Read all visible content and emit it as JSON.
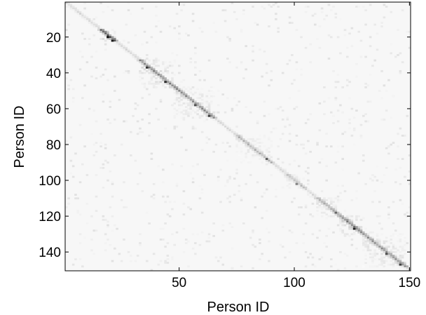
{
  "chart_data": {
    "type": "heatmap",
    "title": "",
    "xlabel": "Person ID",
    "ylabel": "Person ID",
    "x_range": [
      1,
      150
    ],
    "y_range": [
      1,
      150
    ],
    "y_axis_direction": "top-to-bottom",
    "x_ticks": [
      50,
      100,
      150
    ],
    "y_ticks": [
      20,
      40,
      60,
      80,
      100,
      120,
      140
    ],
    "colormap": "gray (white = 0, black = high)",
    "value_range": [
      0,
      1
    ],
    "background_value": 0.03,
    "grid": false,
    "legend": "none",
    "description_of_structure": "Mostly near-white matrix with a dark diagonal band; darker clusters along the diagonal.",
    "diagonal_blocks": [
      {
        "start": 16,
        "end": 22,
        "intensity": 0.75
      },
      {
        "start": 33,
        "end": 48,
        "intensity": 0.55
      },
      {
        "start": 48,
        "end": 65,
        "intensity": 0.5
      },
      {
        "start": 75,
        "end": 90,
        "intensity": 0.35
      },
      {
        "start": 97,
        "end": 104,
        "intensity": 0.3
      },
      {
        "start": 110,
        "end": 120,
        "intensity": 0.4
      },
      {
        "start": 120,
        "end": 130,
        "intensity": 0.6
      },
      {
        "start": 130,
        "end": 148,
        "intensity": 0.5
      }
    ],
    "strong_points": [
      {
        "x": 19,
        "y": 20,
        "value": 0.95
      },
      {
        "x": 21,
        "y": 22,
        "value": 0.9
      },
      {
        "x": 36,
        "y": 37,
        "value": 0.8
      },
      {
        "x": 44,
        "y": 45,
        "value": 0.85
      },
      {
        "x": 57,
        "y": 58,
        "value": 0.7
      },
      {
        "x": 63,
        "y": 64,
        "value": 0.75
      },
      {
        "x": 88,
        "y": 88,
        "value": 0.65
      },
      {
        "x": 101,
        "y": 102,
        "value": 0.5
      },
      {
        "x": 118,
        "y": 118,
        "value": 0.6
      },
      {
        "x": 126,
        "y": 127,
        "value": 0.85
      },
      {
        "x": 140,
        "y": 141,
        "value": 0.7
      },
      {
        "x": 146,
        "y": 147,
        "value": 0.75
      }
    ]
  }
}
